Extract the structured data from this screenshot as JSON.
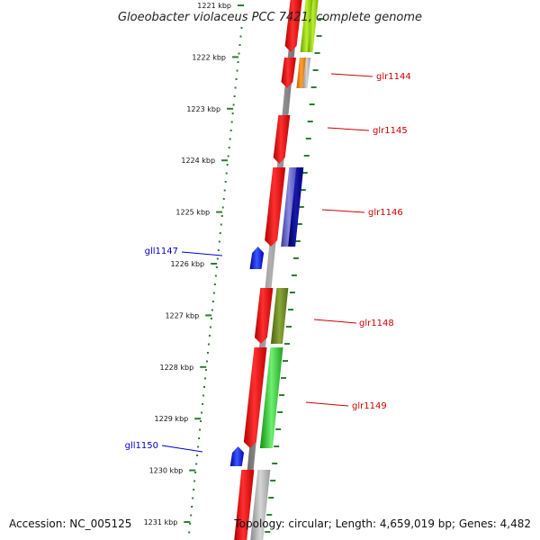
{
  "title": "Gloeobacter violaceus PCC 7421, complete genome",
  "footer": {
    "accession": "Accession: NC_005125",
    "summary": "Topology: circular; Length: 4,659,019 bp; Genes: 4,482"
  },
  "ruler": {
    "ticks": [
      {
        "label": "1221 kbp"
      },
      {
        "label": "1222 kbp"
      },
      {
        "label": "1223 kbp"
      },
      {
        "label": "1224 kbp"
      },
      {
        "label": "1225 kbp"
      },
      {
        "label": "1226 kbp"
      },
      {
        "label": "1227 kbp"
      },
      {
        "label": "1228 kbp"
      },
      {
        "label": "1229 kbp"
      },
      {
        "label": "1230 kbp"
      },
      {
        "label": "1231 kbp"
      }
    ]
  },
  "colors": {
    "backbone": "#808080",
    "ruler_green": "#2e7d32",
    "forward_label": "#cc0000",
    "reverse_label": "#0000cc",
    "cds": "#ff0000",
    "reverse_gene": "#0000ff"
  },
  "genes": [
    {
      "label": "glr1144",
      "strand": "forward"
    },
    {
      "label": "glr1145",
      "strand": "forward"
    },
    {
      "label": "glr1146",
      "strand": "forward"
    },
    {
      "label": "gll1147",
      "strand": "reverse"
    },
    {
      "label": "glr1148",
      "strand": "forward"
    },
    {
      "label": "glr1149",
      "strand": "forward"
    },
    {
      "label": "gll1150",
      "strand": "reverse"
    }
  ]
}
